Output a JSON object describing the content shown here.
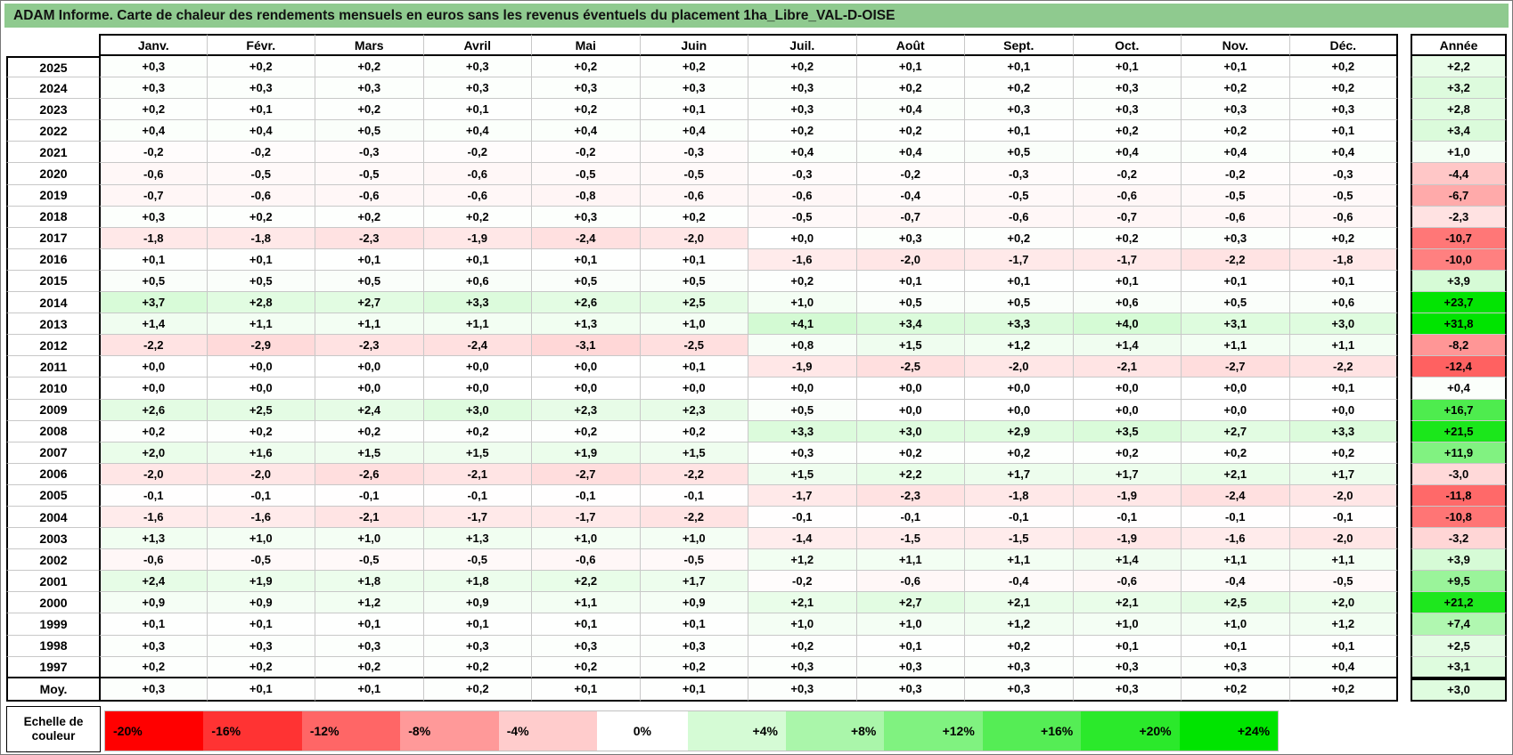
{
  "title": "ADAM Informe. Carte de chaleur des rendements mensuels en euros sans les revenus éventuels du placement 1ha_Libre_VAL-D-OISE",
  "chart_data": {
    "type": "heatmap",
    "title": "ADAM Informe. Carte de chaleur des rendements mensuels en euros sans les revenus éventuels du placement 1ha_Libre_VAL-D-OISE",
    "columns": [
      "Janv.",
      "Févr.",
      "Mars",
      "Avril",
      "Mai",
      "Juin",
      "Juil.",
      "Août",
      "Sept.",
      "Oct.",
      "Nov.",
      "Déc."
    ],
    "annual_header": "Année",
    "rows": [
      {
        "year": "2025",
        "values": [
          "+0,3",
          "+0,2",
          "+0,2",
          "+0,3",
          "+0,2",
          "+0,2",
          "+0,2",
          "+0,1",
          "+0,1",
          "+0,1",
          "+0,1",
          "+0,2"
        ],
        "annual": "+2,2"
      },
      {
        "year": "2024",
        "values": [
          "+0,3",
          "+0,3",
          "+0,3",
          "+0,3",
          "+0,3",
          "+0,3",
          "+0,3",
          "+0,2",
          "+0,2",
          "+0,3",
          "+0,2",
          "+0,2"
        ],
        "annual": "+3,2"
      },
      {
        "year": "2023",
        "values": [
          "+0,2",
          "+0,1",
          "+0,2",
          "+0,1",
          "+0,2",
          "+0,1",
          "+0,3",
          "+0,4",
          "+0,3",
          "+0,3",
          "+0,3",
          "+0,3"
        ],
        "annual": "+2,8"
      },
      {
        "year": "2022",
        "values": [
          "+0,4",
          "+0,4",
          "+0,5",
          "+0,4",
          "+0,4",
          "+0,4",
          "+0,2",
          "+0,2",
          "+0,1",
          "+0,2",
          "+0,2",
          "+0,1"
        ],
        "annual": "+3,4"
      },
      {
        "year": "2021",
        "values": [
          "-0,2",
          "-0,2",
          "-0,3",
          "-0,2",
          "-0,2",
          "-0,3",
          "+0,4",
          "+0,4",
          "+0,5",
          "+0,4",
          "+0,4",
          "+0,4"
        ],
        "annual": "+1,0"
      },
      {
        "year": "2020",
        "values": [
          "-0,6",
          "-0,5",
          "-0,5",
          "-0,6",
          "-0,5",
          "-0,5",
          "-0,3",
          "-0,2",
          "-0,3",
          "-0,2",
          "-0,2",
          "-0,3"
        ],
        "annual": "-4,4"
      },
      {
        "year": "2019",
        "values": [
          "-0,7",
          "-0,6",
          "-0,6",
          "-0,6",
          "-0,8",
          "-0,6",
          "-0,6",
          "-0,4",
          "-0,5",
          "-0,6",
          "-0,5",
          "-0,5"
        ],
        "annual": "-6,7"
      },
      {
        "year": "2018",
        "values": [
          "+0,3",
          "+0,2",
          "+0,2",
          "+0,2",
          "+0,3",
          "+0,2",
          "-0,5",
          "-0,7",
          "-0,6",
          "-0,7",
          "-0,6",
          "-0,6"
        ],
        "annual": "-2,3"
      },
      {
        "year": "2017",
        "values": [
          "-1,8",
          "-1,8",
          "-2,3",
          "-1,9",
          "-2,4",
          "-2,0",
          "+0,0",
          "+0,3",
          "+0,2",
          "+0,2",
          "+0,3",
          "+0,2"
        ],
        "annual": "-10,7"
      },
      {
        "year": "2016",
        "values": [
          "+0,1",
          "+0,1",
          "+0,1",
          "+0,1",
          "+0,1",
          "+0,1",
          "-1,6",
          "-2,0",
          "-1,7",
          "-1,7",
          "-2,2",
          "-1,8"
        ],
        "annual": "-10,0"
      },
      {
        "year": "2015",
        "values": [
          "+0,5",
          "+0,5",
          "+0,5",
          "+0,6",
          "+0,5",
          "+0,5",
          "+0,2",
          "+0,1",
          "+0,1",
          "+0,1",
          "+0,1",
          "+0,1"
        ],
        "annual": "+3,9"
      },
      {
        "year": "2014",
        "values": [
          "+3,7",
          "+2,8",
          "+2,7",
          "+3,3",
          "+2,6",
          "+2,5",
          "+1,0",
          "+0,5",
          "+0,5",
          "+0,6",
          "+0,5",
          "+0,6"
        ],
        "annual": "+23,7"
      },
      {
        "year": "2013",
        "values": [
          "+1,4",
          "+1,1",
          "+1,1",
          "+1,1",
          "+1,3",
          "+1,0",
          "+4,1",
          "+3,4",
          "+3,3",
          "+4,0",
          "+3,1",
          "+3,0"
        ],
        "annual": "+31,8"
      },
      {
        "year": "2012",
        "values": [
          "-2,2",
          "-2,9",
          "-2,3",
          "-2,4",
          "-3,1",
          "-2,5",
          "+0,8",
          "+1,5",
          "+1,2",
          "+1,4",
          "+1,1",
          "+1,1"
        ],
        "annual": "-8,2"
      },
      {
        "year": "2011",
        "values": [
          "+0,0",
          "+0,0",
          "+0,0",
          "+0,0",
          "+0,0",
          "+0,1",
          "-1,9",
          "-2,5",
          "-2,0",
          "-2,1",
          "-2,7",
          "-2,2"
        ],
        "annual": "-12,4"
      },
      {
        "year": "2010",
        "values": [
          "+0,0",
          "+0,0",
          "+0,0",
          "+0,0",
          "+0,0",
          "+0,0",
          "+0,0",
          "+0,0",
          "+0,0",
          "+0,0",
          "+0,0",
          "+0,1"
        ],
        "annual": "+0,4"
      },
      {
        "year": "2009",
        "values": [
          "+2,6",
          "+2,5",
          "+2,4",
          "+3,0",
          "+2,3",
          "+2,3",
          "+0,5",
          "+0,0",
          "+0,0",
          "+0,0",
          "+0,0",
          "+0,0"
        ],
        "annual": "+16,7"
      },
      {
        "year": "2008",
        "values": [
          "+0,2",
          "+0,2",
          "+0,2",
          "+0,2",
          "+0,2",
          "+0,2",
          "+3,3",
          "+3,0",
          "+2,9",
          "+3,5",
          "+2,7",
          "+3,3"
        ],
        "annual": "+21,5"
      },
      {
        "year": "2007",
        "values": [
          "+2,0",
          "+1,6",
          "+1,5",
          "+1,5",
          "+1,9",
          "+1,5",
          "+0,3",
          "+0,2",
          "+0,2",
          "+0,2",
          "+0,2",
          "+0,2"
        ],
        "annual": "+11,9"
      },
      {
        "year": "2006",
        "values": [
          "-2,0",
          "-2,0",
          "-2,6",
          "-2,1",
          "-2,7",
          "-2,2",
          "+1,5",
          "+2,2",
          "+1,7",
          "+1,7",
          "+2,1",
          "+1,7"
        ],
        "annual": "-3,0"
      },
      {
        "year": "2005",
        "values": [
          "-0,1",
          "-0,1",
          "-0,1",
          "-0,1",
          "-0,1",
          "-0,1",
          "-1,7",
          "-2,3",
          "-1,8",
          "-1,9",
          "-2,4",
          "-2,0"
        ],
        "annual": "-11,8"
      },
      {
        "year": "2004",
        "values": [
          "-1,6",
          "-1,6",
          "-2,1",
          "-1,7",
          "-1,7",
          "-2,2",
          "-0,1",
          "-0,1",
          "-0,1",
          "-0,1",
          "-0,1",
          "-0,1"
        ],
        "annual": "-10,8"
      },
      {
        "year": "2003",
        "values": [
          "+1,3",
          "+1,0",
          "+1,0",
          "+1,3",
          "+1,0",
          "+1,0",
          "-1,4",
          "-1,5",
          "-1,5",
          "-1,9",
          "-1,6",
          "-2,0"
        ],
        "annual": "-3,2"
      },
      {
        "year": "2002",
        "values": [
          "-0,6",
          "-0,5",
          "-0,5",
          "-0,5",
          "-0,6",
          "-0,5",
          "+1,2",
          "+1,1",
          "+1,1",
          "+1,4",
          "+1,1",
          "+1,1"
        ],
        "annual": "+3,9"
      },
      {
        "year": "2001",
        "values": [
          "+2,4",
          "+1,9",
          "+1,8",
          "+1,8",
          "+2,2",
          "+1,7",
          "-0,2",
          "-0,6",
          "-0,4",
          "-0,6",
          "-0,4",
          "-0,5"
        ],
        "annual": "+9,5"
      },
      {
        "year": "2000",
        "values": [
          "+0,9",
          "+0,9",
          "+1,2",
          "+0,9",
          "+1,1",
          "+0,9",
          "+2,1",
          "+2,7",
          "+2,1",
          "+2,1",
          "+2,5",
          "+2,0"
        ],
        "annual": "+21,2"
      },
      {
        "year": "1999",
        "values": [
          "+0,1",
          "+0,1",
          "+0,1",
          "+0,1",
          "+0,1",
          "+0,1",
          "+1,0",
          "+1,0",
          "+1,2",
          "+1,0",
          "+1,0",
          "+1,2"
        ],
        "annual": "+7,4"
      },
      {
        "year": "1998",
        "values": [
          "+0,3",
          "+0,3",
          "+0,3",
          "+0,3",
          "+0,3",
          "+0,3",
          "+0,2",
          "+0,1",
          "+0,2",
          "+0,1",
          "+0,1",
          "+0,1"
        ],
        "annual": "+2,5"
      },
      {
        "year": "1997",
        "values": [
          "+0,2",
          "+0,2",
          "+0,2",
          "+0,2",
          "+0,2",
          "+0,2",
          "+0,3",
          "+0,3",
          "+0,3",
          "+0,3",
          "+0,3",
          "+0,4"
        ],
        "annual": "+3,1"
      }
    ],
    "average_row": {
      "label": "Moy.",
      "values": [
        "+0,3",
        "+0,1",
        "+0,1",
        "+0,2",
        "+0,1",
        "+0,1",
        "+0,3",
        "+0,3",
        "+0,3",
        "+0,3",
        "+0,2",
        "+0,2"
      ],
      "annual": "+3,0"
    },
    "legend": {
      "label": "Echelle de couleur",
      "stops": [
        "-20%",
        "-16%",
        "-12%",
        "-8%",
        "-4%",
        "0%",
        "+4%",
        "+8%",
        "+12%",
        "+16%",
        "+20%",
        "+24%"
      ]
    },
    "scale": {
      "negative_full": -20,
      "positive_full": 24
    },
    "colors": {
      "negative_end": "#FF0000",
      "positive_end": "#00E400",
      "title_bar": "#8FCA8F",
      "grid_line": "#C8C8C8"
    }
  }
}
